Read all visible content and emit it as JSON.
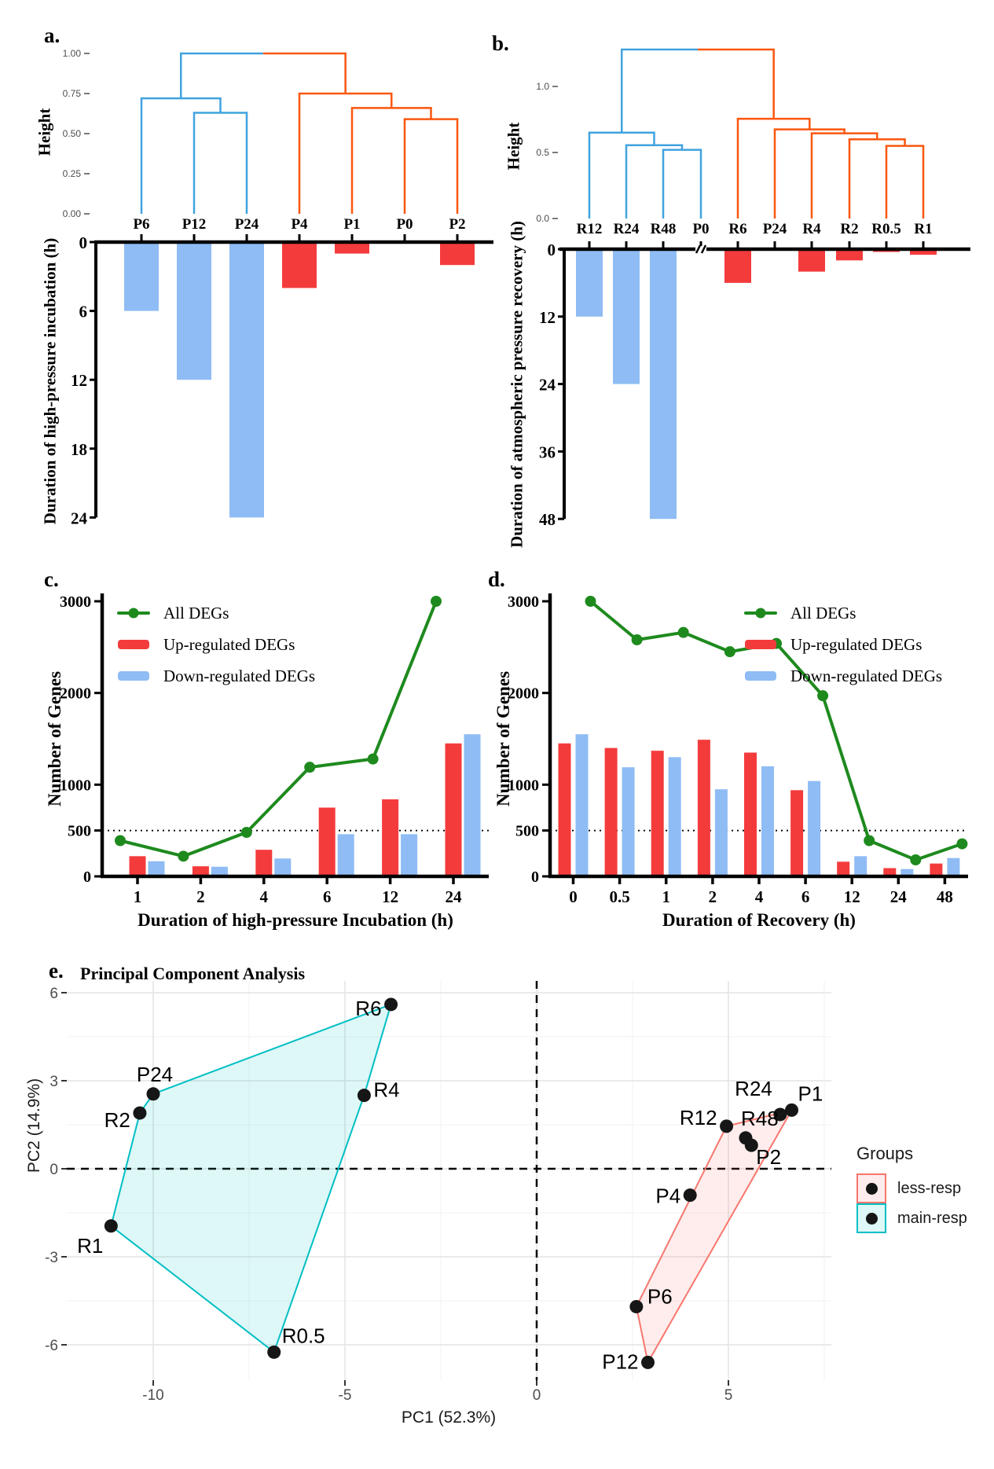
{
  "panel_letters": {
    "a": "a.",
    "b": "b.",
    "c": "c.",
    "d": "d.",
    "e": "e."
  },
  "colors": {
    "dendro_blue": "#41A3DF",
    "dendro_orange": "#FA570F",
    "bar_up": "#F43B3C",
    "bar_down": "#8FBCF4",
    "line_green": "#1E8A1E",
    "hull_less": "#F8766D",
    "hull_main": "#00BFC4",
    "point_black": "#161616",
    "grid_major": "#E4E4E4",
    "grid_minor": "#F2F2F2",
    "axis_gray": "#4d4d4d"
  },
  "chart_data": [
    {
      "id": "dendrogram-incubation",
      "type": "dendrogram",
      "ylabel": "Height",
      "yticks": [
        "1.00",
        "0.75",
        "0.50",
        "0.25",
        "0.00"
      ],
      "leaves": [
        "P6",
        "P12",
        "P24",
        "P4",
        "P1",
        "P0",
        "P2"
      ],
      "clusters": [
        "blue",
        "blue",
        "blue",
        "orange",
        "orange",
        "orange",
        "orange"
      ],
      "merges": [
        [
          "P12",
          "P24",
          0.63
        ],
        [
          "P6",
          "M0",
          0.72
        ],
        [
          "P0",
          "P2",
          0.59
        ],
        [
          "P1",
          "M2",
          0.66
        ],
        [
          "P4",
          "M3",
          0.75
        ],
        [
          "M1",
          "M4",
          1.0
        ]
      ]
    },
    {
      "id": "bars-incubation",
      "type": "bar",
      "direction": "down",
      "ylabel": "Duration of high-pressure incubation (h)",
      "yticks": [
        0,
        6,
        12,
        18,
        24
      ],
      "categories": [
        "P6",
        "P12",
        "P24",
        "P4",
        "P1",
        "P0",
        "P2"
      ],
      "values": [
        6,
        12,
        24,
        4,
        1,
        0,
        2
      ],
      "bar_colors": [
        "down",
        "down",
        "down",
        "up",
        "up",
        "none",
        "up"
      ]
    },
    {
      "id": "dendrogram-recovery",
      "type": "dendrogram",
      "ylabel": "Height",
      "yticks": [
        "1.0",
        "0.5",
        "0.0"
      ],
      "leaves": [
        "R12",
        "R24",
        "R48",
        "P0",
        "R6",
        "P24",
        "R4",
        "R2",
        "R0.5",
        "R1"
      ],
      "clusters": [
        "blue",
        "blue",
        "blue",
        "blue",
        "orange",
        "orange",
        "orange",
        "orange",
        "orange",
        "orange"
      ],
      "merges": [
        [
          "R48",
          "P0",
          0.52
        ],
        [
          "R24",
          "M0",
          0.555
        ],
        [
          "R12",
          "M1",
          0.65
        ],
        [
          "R0.5",
          "R1",
          0.55
        ],
        [
          "R2",
          "M3",
          0.6
        ],
        [
          "R4",
          "M4",
          0.645
        ],
        [
          "P24",
          "M5",
          0.675
        ],
        [
          "R6",
          "M6",
          0.755
        ],
        [
          "M2",
          "M7",
          1.28
        ]
      ]
    },
    {
      "id": "bars-recovery",
      "type": "bar",
      "direction": "down",
      "ylabel": "Duration of atmospheric pressure recovery (h)",
      "yticks": [
        0,
        12,
        24,
        36,
        48
      ],
      "categories": [
        "R12",
        "R24",
        "R48",
        "P0",
        "R6",
        "P24",
        "R4",
        "R2",
        "R0.5",
        "R1"
      ],
      "values": [
        12,
        24,
        48,
        0,
        6,
        0,
        4,
        2,
        0.5,
        1
      ],
      "bar_colors": [
        "down",
        "down",
        "down",
        "none",
        "up",
        "none",
        "up",
        "up",
        "up",
        "up"
      ],
      "axis_break_at": "P0"
    },
    {
      "id": "degs-incubation",
      "type": "line+bar",
      "xlabel": "Duration of high-pressure Incubation (h)",
      "ylabel": "Number of Genes",
      "yticks": [
        0,
        500,
        1000,
        2000,
        3000
      ],
      "ylim": [
        0,
        3000
      ],
      "ref_line": 500,
      "legend_position": "top-left",
      "categories": [
        "1",
        "2",
        "4",
        "6",
        "12",
        "24"
      ],
      "series": [
        {
          "name": "All DEGs",
          "type": "line",
          "color": "green",
          "values": [
            390,
            220,
            480,
            1190,
            1280,
            3000
          ]
        },
        {
          "name": "Up-regulated DEGs",
          "type": "bar",
          "color": "up",
          "values": [
            220,
            110,
            290,
            750,
            840,
            1450
          ]
        },
        {
          "name": "Down-regulated DEGs",
          "type": "bar",
          "color": "down",
          "values": [
            165,
            105,
            195,
            460,
            460,
            1550
          ]
        }
      ]
    },
    {
      "id": "degs-recovery",
      "type": "line+bar",
      "xlabel": "Duration of Recovery (h)",
      "ylabel": "Number of Genes",
      "yticks": [
        0,
        500,
        1000,
        2000,
        3000
      ],
      "ylim": [
        0,
        3000
      ],
      "ref_line": 500,
      "legend_position": "top-right",
      "categories": [
        "0",
        "0.5",
        "1",
        "2",
        "4",
        "6",
        "12",
        "24",
        "48"
      ],
      "series": [
        {
          "name": "All DEGs",
          "type": "line",
          "color": "green",
          "values": [
            3000,
            2580,
            2660,
            2450,
            2540,
            1970,
            390,
            180,
            355
          ]
        },
        {
          "name": "Up-regulated DEGs",
          "type": "bar",
          "color": "up",
          "values": [
            1450,
            1400,
            1370,
            1490,
            1350,
            940,
            160,
            90,
            140
          ]
        },
        {
          "name": "Down-regulated DEGs",
          "type": "bar",
          "color": "down",
          "values": [
            1550,
            1190,
            1300,
            950,
            1200,
            1040,
            220,
            80,
            200
          ]
        }
      ]
    },
    {
      "id": "pca",
      "type": "scatter",
      "title": "Principal Component Analysis",
      "xlabel": "PC1 (52.3%)",
      "ylabel": "PC2 (14.9%)",
      "xticks": [
        -10,
        -5,
        0,
        5
      ],
      "yticks": [
        6,
        3,
        0,
        -3,
        -6
      ],
      "xlim": [
        -12.3,
        7.7
      ],
      "ylim": [
        -7.2,
        6.4
      ],
      "legend_title": "Groups",
      "groups": [
        {
          "name": "less-resp",
          "color": "less",
          "points": [
            {
              "label": "P1",
              "x": 6.65,
              "y": 2.0
            },
            {
              "label": "R24",
              "x": 6.35,
              "y": 1.85
            },
            {
              "label": "R12",
              "x": 4.95,
              "y": 1.45
            },
            {
              "label": "R48",
              "x": 5.45,
              "y": 1.05
            },
            {
              "label": "P2",
              "x": 5.6,
              "y": 0.8
            },
            {
              "label": "P4",
              "x": 4.0,
              "y": -0.9
            },
            {
              "label": "P6",
              "x": 2.6,
              "y": -4.7
            },
            {
              "label": "P12",
              "x": 2.9,
              "y": -6.6
            }
          ],
          "hull": [
            "P12",
            "P6",
            "R12",
            "P1"
          ]
        },
        {
          "name": "main-resp",
          "color": "main",
          "points": [
            {
              "label": "R6",
              "x": -3.8,
              "y": 5.6
            },
            {
              "label": "R4",
              "x": -4.5,
              "y": 2.5
            },
            {
              "label": "P24",
              "x": -10.0,
              "y": 2.55
            },
            {
              "label": "R2",
              "x": -10.35,
              "y": 1.9
            },
            {
              "label": "R1",
              "x": -11.1,
              "y": -1.95
            },
            {
              "label": "R0.5",
              "x": -6.85,
              "y": -6.25
            }
          ],
          "hull": [
            "R1",
            "R2",
            "P24",
            "R6",
            "R4",
            "R0.5"
          ]
        }
      ]
    }
  ]
}
